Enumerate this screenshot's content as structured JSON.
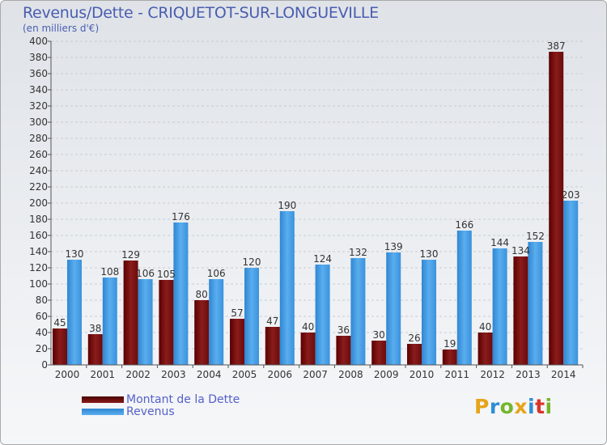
{
  "header": {
    "title": "Revenus/Dette - CRIQUETOT-SUR-LONGUEVILLE",
    "subtitle": "(en milliers d'€)"
  },
  "legend": {
    "items": [
      {
        "label": "Montant de la Dette",
        "color": "#7a1414"
      },
      {
        "label": "Revenus",
        "color": "#3f97e0"
      }
    ]
  },
  "logo": {
    "letters": [
      "P",
      "r",
      "o",
      "x",
      "i",
      "t",
      "i"
    ],
    "colors": [
      "#e6a419",
      "#2a8fd6",
      "#74b62b",
      "#e6a419",
      "#2a8fd6",
      "#d9352b",
      "#74b62b"
    ]
  },
  "chart_data": {
    "type": "bar",
    "categories": [
      "2000",
      "2001",
      "2002",
      "2003",
      "2004",
      "2005",
      "2006",
      "2007",
      "2008",
      "2009",
      "2010",
      "2011",
      "2012",
      "2013",
      "2014"
    ],
    "series": [
      {
        "name": "Montant de la Dette",
        "color": "#7a1414",
        "values": [
          45,
          38,
          129,
          105,
          80,
          57,
          47,
          40,
          36,
          30,
          26,
          19,
          40,
          134,
          387
        ]
      },
      {
        "name": "Revenus",
        "color": "#3f97e0",
        "values": [
          130,
          108,
          106,
          176,
          106,
          120,
          190,
          124,
          132,
          139,
          130,
          166,
          144,
          152,
          203
        ]
      }
    ],
    "ylim": [
      0,
      400
    ],
    "yticks": [
      "0",
      "20",
      "40",
      "60",
      "80",
      "100",
      "120",
      "140",
      "160",
      "180",
      "200",
      "220",
      "240",
      "260",
      "280",
      "300",
      "320",
      "340",
      "360",
      "380",
      "400"
    ],
    "grid": true
  }
}
